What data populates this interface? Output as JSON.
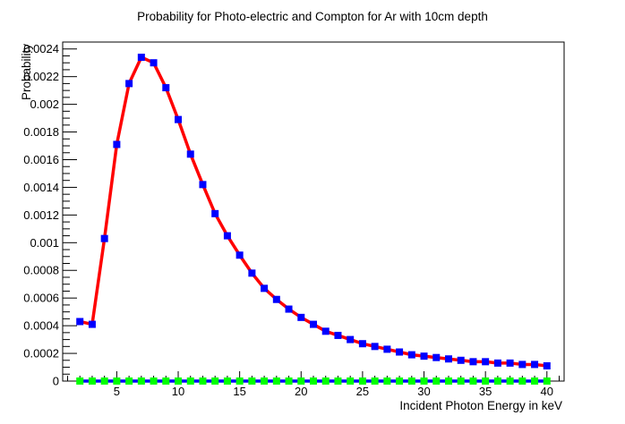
{
  "chart_data": {
    "type": "line",
    "title": "Probability for Photo-electric and Compton for Ar with 10cm depth",
    "xlabel": "Incident Photon Energy in keV",
    "ylabel": "Probability",
    "xlim": [
      0.6,
      41.4
    ],
    "ylim": [
      0,
      0.00245
    ],
    "x_ticks": [
      5,
      10,
      15,
      20,
      25,
      30,
      35,
      40
    ],
    "x_tick_labels": [
      "5",
      "10",
      "15",
      "20",
      "25",
      "30",
      "35",
      "40"
    ],
    "y_ticks": [
      0,
      0.0002,
      0.0004,
      0.0006,
      0.0008,
      0.001,
      0.0012,
      0.0014,
      0.0016,
      0.0018,
      0.002,
      0.0022,
      0.0024
    ],
    "y_tick_labels": [
      "0",
      "0.0002",
      "0.0004",
      "0.0006",
      "0.0008",
      "0.001",
      "0.0012",
      "0.0014",
      "0.0016",
      "0.0018",
      "0.002",
      "0.0022",
      "0.0024"
    ],
    "grid": false,
    "legend": "none",
    "x": [
      2,
      3,
      4,
      5,
      6,
      7,
      8,
      9,
      10,
      11,
      12,
      13,
      14,
      15,
      16,
      17,
      18,
      19,
      20,
      21,
      22,
      23,
      24,
      25,
      26,
      27,
      28,
      29,
      30,
      31,
      32,
      33,
      34,
      35,
      36,
      37,
      38,
      39,
      40
    ],
    "series": [
      {
        "color": "#ff0000",
        "marker_color": "#0000ff",
        "marker": "square",
        "values": [
          0.00043,
          0.00041,
          0.00103,
          0.00171,
          0.00215,
          0.00234,
          0.0023,
          0.00212,
          0.00189,
          0.00164,
          0.00142,
          0.00121,
          0.00105,
          0.00091,
          0.00078,
          0.00067,
          0.00059,
          0.00052,
          0.00046,
          0.00041,
          0.00036,
          0.00033,
          0.0003,
          0.00027,
          0.00025,
          0.00023,
          0.00021,
          0.00019,
          0.00018,
          0.00017,
          0.00016,
          0.00015,
          0.00014,
          0.00014,
          0.00013,
          0.00013,
          0.00012,
          0.00012,
          0.00011
        ]
      },
      {
        "color": "#0000ff",
        "marker_color": "#00ff00",
        "marker": "square",
        "values": [
          1e-07,
          1e-07,
          1e-07,
          1e-07,
          1e-07,
          1e-07,
          1e-07,
          1e-07,
          1e-07,
          1e-07,
          1e-07,
          1e-07,
          1e-07,
          1e-07,
          1e-07,
          1e-07,
          1e-07,
          1e-07,
          1e-07,
          1e-07,
          1e-07,
          1e-07,
          1e-07,
          1e-07,
          1e-07,
          1e-07,
          1e-07,
          1e-07,
          1e-07,
          1e-07,
          1e-07,
          1e-07,
          1e-07,
          1e-07,
          1e-07,
          1e-07,
          1e-07,
          1e-07,
          1e-07
        ]
      }
    ]
  }
}
